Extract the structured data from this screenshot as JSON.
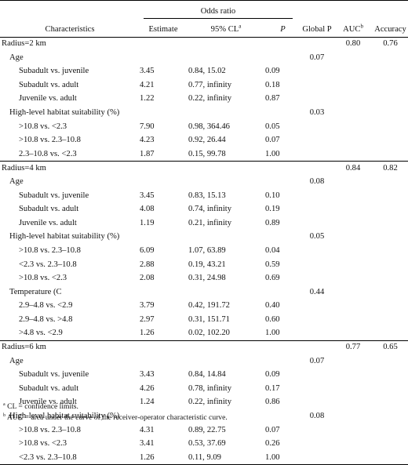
{
  "header": {
    "odds_ratio": "Odds ratio",
    "characteristics": "Characteristics",
    "estimate": "Estimate",
    "ci": "95% CL",
    "ci_sup": "a",
    "p": "P",
    "global_p": "Global P",
    "auc": "AUC",
    "auc_sup": "b",
    "accuracy": "Accuracy"
  },
  "rows": [
    {
      "type": "radius",
      "label": "Radius=2 km",
      "auc": "0.80",
      "acc": "0.76"
    },
    {
      "type": "group",
      "label": "Age",
      "gp": "0.07"
    },
    {
      "type": "item",
      "label": "Subadult vs. juvenile",
      "est": "3.45",
      "ci": "0.84, 15.02",
      "p": "0.09"
    },
    {
      "type": "item",
      "label": "Subadult vs. adult",
      "est": "4.21",
      "ci": "0.77, infinity",
      "p": "0.18"
    },
    {
      "type": "item",
      "label": "Juvenile vs. adult",
      "est": "1.22",
      "ci": "0.22, infinity",
      "p": "0.87"
    },
    {
      "type": "group",
      "label": "High-level habitat suitability (%)",
      "gp": "0.03"
    },
    {
      "type": "item",
      "label": ">10.8 vs. <2.3",
      "est": "7.90",
      "ci": "0.98, 364.46",
      "p": "0.05"
    },
    {
      "type": "item",
      "label": ">10.8 vs. 2.3–10.8",
      "est": "4.23",
      "ci": "0.92, 26.44",
      "p": "0.07"
    },
    {
      "type": "item",
      "label": "2.3–10.8 vs. <2.3",
      "est": "1.87",
      "ci": "0.15, 99.78",
      "p": "1.00"
    },
    {
      "type": "radius",
      "label": "Radius=4 km",
      "auc": "0.84",
      "acc": "0.82"
    },
    {
      "type": "group",
      "label": "Age",
      "gp": "0.08"
    },
    {
      "type": "item",
      "label": "Subadult vs. juvenile",
      "est": "3.45",
      "ci": "0.83, 15.13",
      "p": "0.10"
    },
    {
      "type": "item",
      "label": "Subadult vs. adult",
      "est": "4.08",
      "ci": "0.74, infinity",
      "p": "0.19"
    },
    {
      "type": "item",
      "label": "Juvenile vs. adult",
      "est": "1.19",
      "ci": "0.21, infinity",
      "p": "0.89"
    },
    {
      "type": "group",
      "label": "High-level habitat suitability (%)",
      "gp": "0.05"
    },
    {
      "type": "item",
      "label": ">10.8 vs. 2.3–10.8",
      "est": "6.09",
      "ci": "1.07, 63.89",
      "p": "0.04"
    },
    {
      "type": "item",
      "label": "<2.3 vs. 2.3–10.8",
      "est": "2.88",
      "ci": "0.19, 43.21",
      "p": "0.59"
    },
    {
      "type": "item",
      "label": ">10.8 vs. <2.3",
      "est": "2.08",
      "ci": "0.31, 24.98",
      "p": "0.69"
    },
    {
      "type": "group",
      "label": "Temperature (C",
      "gp": "0.44"
    },
    {
      "type": "item",
      "label": "2.9–4.8 vs. <2.9",
      "est": "3.79",
      "ci": "0.42, 191.72",
      "p": "0.40"
    },
    {
      "type": "item",
      "label": "2.9–4.8 vs. >4.8",
      "est": "2.97",
      "ci": "0.31, 151.71",
      "p": "0.60"
    },
    {
      "type": "item",
      "label": ">4.8 vs. <2.9",
      "est": "1.26",
      "ci": "0.02, 102.20",
      "p": "1.00"
    },
    {
      "type": "radius",
      "label": "Radius=6 km",
      "auc": "0.77",
      "acc": "0.65"
    },
    {
      "type": "group",
      "label": "Age",
      "gp": "0.07"
    },
    {
      "type": "item",
      "label": "Subadult vs. juvenile",
      "est": "3.43",
      "ci": "0.84, 14.84",
      "p": "0.09"
    },
    {
      "type": "item",
      "label": "Subadult vs. adult",
      "est": "4.26",
      "ci": "0.78, infinity",
      "p": "0.17"
    },
    {
      "type": "item",
      "label": "Juvenile vs. adult",
      "est": "1.24",
      "ci": "0.22, infinity",
      "p": "0.86"
    },
    {
      "type": "group",
      "label": "High-level habitat suitability (%)",
      "gp": "0.08"
    },
    {
      "type": "item",
      "label": ">10.8 vs. 2.3–10.8",
      "est": "4.31",
      "ci": "0.89, 22.75",
      "p": "0.07"
    },
    {
      "type": "item",
      "label": ">10.8 vs. <2.3",
      "est": "3.41",
      "ci": "0.53, 37.69",
      "p": "0.26"
    },
    {
      "type": "item",
      "label": "<2.3 vs. 2.3–10.8",
      "est": "1.26",
      "ci": "0.11, 9.09",
      "p": "1.00"
    }
  ],
  "footnotes": [
    {
      "sup": "a",
      "text": "CL = confidence limits."
    },
    {
      "sup": "b",
      "text": "AUC = area under the curve of the receiver-operator characteristic curve."
    }
  ]
}
